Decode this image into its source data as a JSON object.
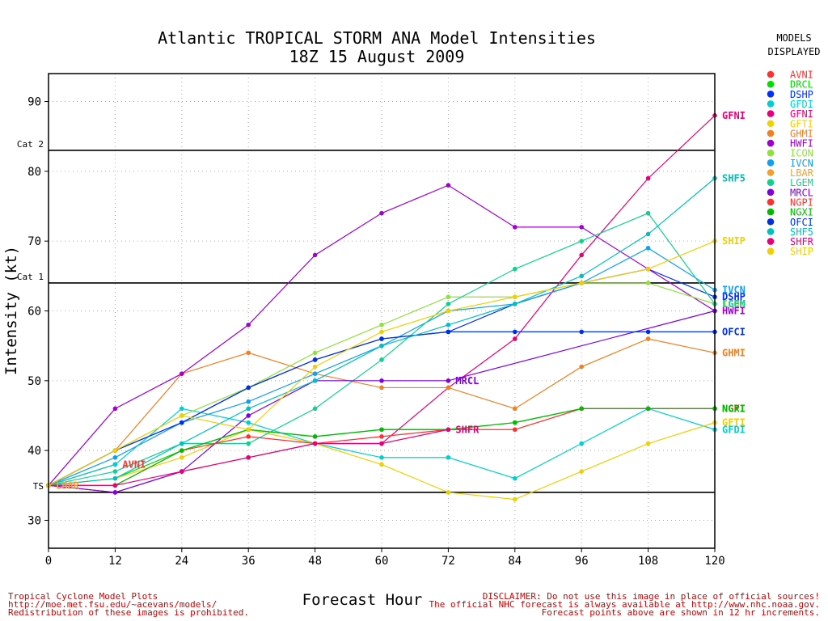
{
  "chart_data": {
    "type": "line",
    "title": "Atlantic TROPICAL STORM ANA Model Intensities",
    "subtitle": "18Z 15 August 2009",
    "xlabel": "Forecast Hour",
    "ylabel": "Intensity (kt)",
    "x": [
      0,
      12,
      24,
      36,
      48,
      60,
      72,
      84,
      96,
      108,
      120
    ],
    "xlim": [
      0,
      120
    ],
    "ylim": [
      26,
      94
    ],
    "yticks": [
      30,
      40,
      50,
      60,
      70,
      80,
      90
    ],
    "grid": true,
    "reference_lines": [
      {
        "label": "TS",
        "value": 34
      },
      {
        "label": "Cat 1",
        "value": 64
      },
      {
        "label": "Cat 2",
        "value": 83
      }
    ],
    "legend_title": [
      "MODELS",
      "DISPLAYED"
    ],
    "legend_position": "right",
    "series": [
      {
        "name": "AVNI",
        "color": "#ff3030",
        "values": [
          35,
          38,
          null,
          null,
          null,
          null,
          null,
          null,
          null,
          null,
          null
        ],
        "label_at": 12
      },
      {
        "name": "DRCL",
        "color": "#00dd00",
        "values": [
          35,
          36,
          40,
          43,
          42,
          43,
          43,
          44,
          46,
          46,
          46
        ]
      },
      {
        "name": "DSHP",
        "color": "#0030ff",
        "values": [
          35,
          40,
          44,
          49,
          53,
          56,
          57,
          61,
          64,
          66,
          62
        ],
        "label_at": 120
      },
      {
        "name": "GFDI",
        "color": "#00d0d0",
        "values": [
          35,
          38,
          46,
          44,
          41,
          39,
          39,
          36,
          41,
          46,
          43
        ],
        "label_at": 120
      },
      {
        "name": "GFNI",
        "color": "#e8007a",
        "values": [
          35,
          34,
          37,
          39,
          41,
          41,
          49,
          56,
          68,
          79,
          88
        ],
        "label_at": 120
      },
      {
        "name": "GFTI",
        "color": "#f0d000",
        "values": [
          35,
          36,
          39,
          43,
          41,
          38,
          34,
          33,
          37,
          41,
          44
        ],
        "label_at": 120
      },
      {
        "name": "GHMI",
        "color": "#f08020",
        "values": [
          35,
          40,
          51,
          54,
          51,
          49,
          49,
          46,
          52,
          56,
          54
        ],
        "label_at": 120
      },
      {
        "name": "HWFI",
        "color": "#a000d0",
        "values": [
          35,
          46,
          51,
          58,
          68,
          74,
          78,
          72,
          72,
          66,
          60
        ],
        "label_at": 120
      },
      {
        "name": "ICON",
        "color": "#90e040",
        "values": [
          35,
          40,
          45,
          49,
          54,
          58,
          62,
          62,
          64,
          64,
          61
        ],
        "label_at": 120
      },
      {
        "name": "IVCN",
        "color": "#10a0f0",
        "values": [
          35,
          39,
          44,
          47,
          51,
          55,
          60,
          61,
          64,
          69,
          63
        ],
        "label_at": 120
      },
      {
        "name": "LBAR",
        "color": "#f0a030",
        "values": [
          35,
          null,
          null,
          null,
          null,
          null,
          null,
          null,
          null,
          null,
          null
        ],
        "label_at": 0
      },
      {
        "name": "LGEM",
        "color": "#10d090",
        "values": [
          35,
          37,
          41,
          41,
          46,
          53,
          61,
          66,
          70,
          74,
          61
        ],
        "label_at": 120
      },
      {
        "name": "MRCL",
        "color": "#8000e0",
        "values": [
          35,
          34,
          37,
          45,
          50,
          50,
          50,
          null,
          null,
          null,
          60
        ],
        "label_at": 72
      },
      {
        "name": "NGPI",
        "color": "#ff3030",
        "values": [
          35,
          35,
          40,
          42,
          41,
          42,
          43,
          43,
          46,
          46,
          46
        ],
        "label_at": 120
      },
      {
        "name": "NGXI",
        "color": "#00bb00",
        "values": [
          35,
          35,
          40,
          43,
          42,
          43,
          43,
          44,
          46,
          46,
          46
        ],
        "label_at": 120
      },
      {
        "name": "OFCI",
        "color": "#0030e0",
        "values": [
          35,
          40,
          44,
          49,
          53,
          56,
          57,
          57,
          57,
          57,
          57
        ],
        "label_at": 120
      },
      {
        "name": "SHF5",
        "color": "#00c0c0",
        "values": [
          35,
          36,
          41,
          46,
          50,
          55,
          58,
          61,
          65,
          71,
          79
        ],
        "label_at": 120
      },
      {
        "name": "SHFR",
        "color": "#e8007a",
        "values": [
          35,
          35,
          37,
          39,
          41,
          41,
          43,
          null,
          null,
          null,
          null
        ],
        "label_at": 72
      },
      {
        "name": "SHIP",
        "color": "#f0d000",
        "values": [
          35,
          40,
          45,
          43,
          52,
          57,
          60,
          62,
          64,
          66,
          70
        ],
        "label_at": 120
      }
    ]
  },
  "footer": {
    "left": [
      "Tropical Cyclone Model Plots",
      "http://moe.met.fsu.edu/~acevans/models/",
      "Redistribution of these images is prohibited."
    ],
    "right": [
      "DISCLAIMER: Do not use this image in place of official sources!",
      "The official NHC forecast is always available at http://www.nhc.noaa.gov.",
      "Forecast points above are shown in 12 hr increments."
    ]
  }
}
